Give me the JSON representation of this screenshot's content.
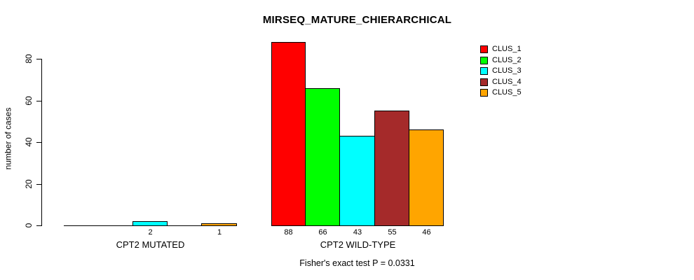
{
  "chart_data": {
    "type": "bar",
    "title": "MIRSEQ_MATURE_CHIERARCHICAL",
    "ylabel": "number of cases",
    "xlabel": "",
    "ylim": [
      0,
      88
    ],
    "yticks": [
      0,
      20,
      40,
      60,
      80
    ],
    "grid": false,
    "legend_position": "top-right",
    "axis_color": "#000000",
    "background_color": "#ffffff",
    "series": [
      {
        "name": "CLUS_1",
        "color": "#FF0000"
      },
      {
        "name": "CLUS_2",
        "color": "#00FF00"
      },
      {
        "name": "CLUS_3",
        "color": "#00FFFF"
      },
      {
        "name": "CLUS_4",
        "color": "#A52A2A"
      },
      {
        "name": "CLUS_5",
        "color": "#FFA500"
      }
    ],
    "groups": [
      {
        "label": "CPT2 MUTATED",
        "values": [
          0,
          0,
          2,
          0,
          1
        ]
      },
      {
        "label": "CPT2 WILD-TYPE",
        "values": [
          88,
          66,
          43,
          55,
          46
        ]
      }
    ],
    "value_labels": {
      "CPT2 MUTATED": [
        "",
        "",
        "2",
        "",
        "1"
      ],
      "CPT2 WILD-TYPE": [
        "88",
        "66",
        "43",
        "55",
        "46"
      ]
    },
    "annotation": "Fisher's exact test P = 0.0331"
  }
}
